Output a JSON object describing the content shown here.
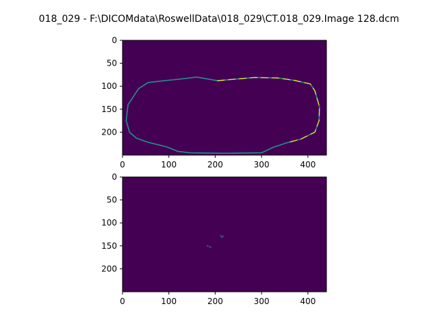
{
  "figure": {
    "title": "018_029 - F:\\DICOMdata\\RoswellData\\018_029\\CT.018_029.Image 128.dcm",
    "colors": {
      "background": "#440154",
      "mid": "#21918c",
      "edge": "#3b528b",
      "bright": "#fde725"
    }
  },
  "chart_data": [
    {
      "type": "heatmap",
      "title": "",
      "xlabel": "",
      "ylabel": "",
      "xlim": [
        0,
        440
      ],
      "ylim": [
        250,
        0
      ],
      "xticks": [
        "0",
        "100",
        "200",
        "300",
        "400"
      ],
      "yticks": [
        "0",
        "50",
        "100",
        "150",
        "200"
      ],
      "description_of_content": "binary edge map",
      "outline_path_data": [
        [
          145,
          245
        ],
        [
          120,
          242
        ],
        [
          95,
          232
        ],
        [
          55,
          222
        ],
        [
          30,
          213
        ],
        [
          15,
          200
        ],
        [
          8,
          175
        ],
        [
          12,
          140
        ],
        [
          35,
          105
        ],
        [
          55,
          92
        ],
        [
          90,
          88
        ],
        [
          120,
          85
        ],
        [
          160,
          80
        ],
        [
          205,
          88
        ],
        [
          250,
          84
        ],
        [
          285,
          81
        ],
        [
          335,
          82
        ],
        [
          370,
          87
        ],
        [
          405,
          95
        ],
        [
          415,
          110
        ],
        [
          425,
          145
        ],
        [
          424,
          175
        ],
        [
          415,
          200
        ],
        [
          385,
          215
        ],
        [
          355,
          223
        ],
        [
          325,
          233
        ],
        [
          300,
          245
        ],
        [
          220,
          246
        ]
      ]
    },
    {
      "type": "heatmap",
      "title": "",
      "xlabel": "",
      "ylabel": "",
      "xlim": [
        0,
        440
      ],
      "ylim": [
        250,
        0
      ],
      "xticks": [
        "0",
        "100",
        "200",
        "300",
        "400"
      ],
      "yticks": [
        "0",
        "50",
        "100",
        "150",
        "200"
      ],
      "points": [
        [
          212,
          128
        ],
        [
          217,
          129
        ],
        [
          214,
          131
        ],
        [
          183,
          150
        ],
        [
          187,
          151
        ],
        [
          190,
          153
        ]
      ]
    }
  ]
}
